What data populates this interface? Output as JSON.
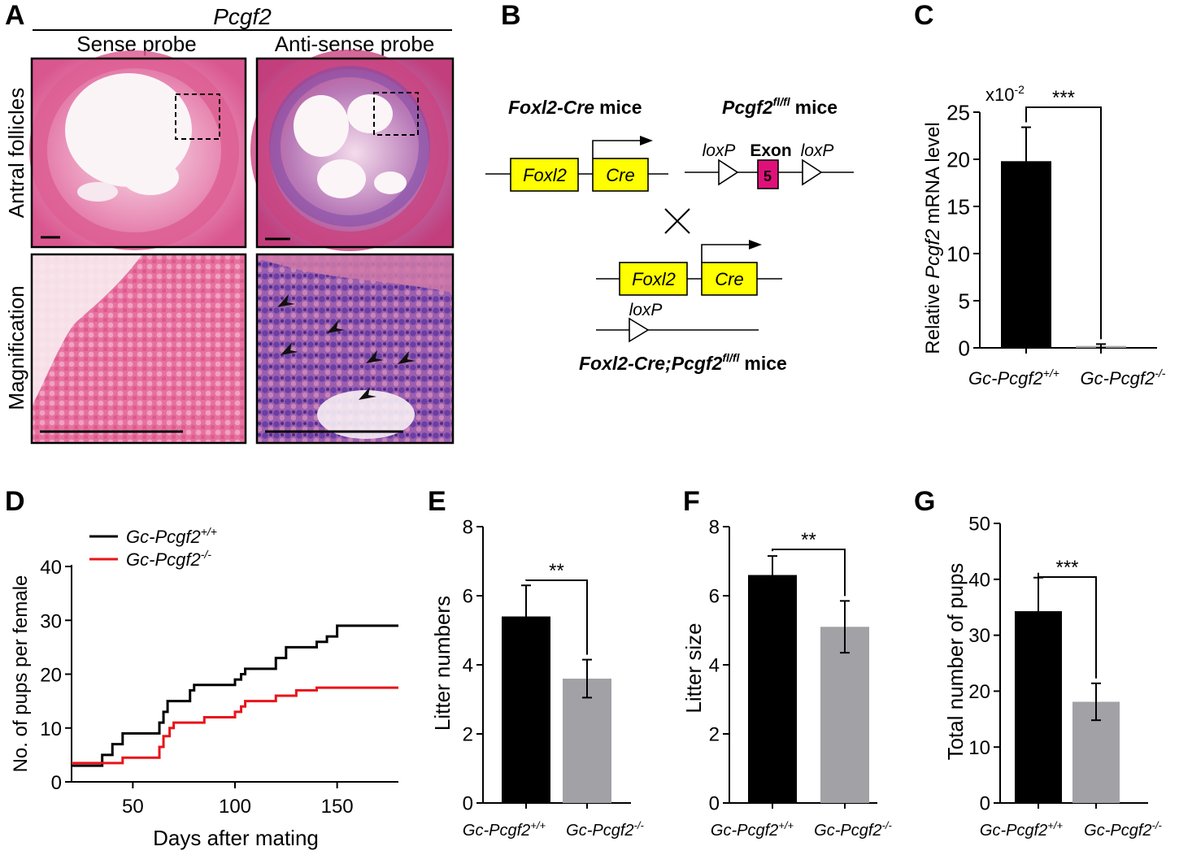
{
  "panel_labels": [
    "A",
    "B",
    "C",
    "D",
    "E",
    "F",
    "G"
  ],
  "colors": {
    "black_bar": "#000000",
    "gray_bar": "#a2a2a6",
    "red_line": "#e8141a",
    "gene_box": "#ffff00",
    "exon_box": "#e0107a",
    "tissue_pink": "#e06a9e",
    "stain_purple": "#6a3fa5"
  },
  "panel_a": {
    "gene": "Pcgf2",
    "col_sense": "Sense probe",
    "col_antisense": "Anti-sense probe",
    "row_antral": "Antral follicles",
    "row_mag": "Magnification"
  },
  "panel_b": {
    "foxl2cre_title_bold": "Foxl2-Cre",
    "mice": "mice",
    "pcgf2_title": "Pcgf2",
    "pcgf2_sup": "fl/fl",
    "foxl2": "Foxl2",
    "cre": "Cre",
    "loxp": "loxP",
    "exon": "Exon",
    "exon_num": "5",
    "cross": "×",
    "result_main": "Foxl2-Cre;Pcgf2",
    "result_sup": "fl/fl",
    "result_tail": "mice"
  },
  "panel_c": {
    "ylabel_pre": "Relative",
    "ylabel_gene": "Pcgf2",
    "ylabel_post": "mRNA level",
    "multiplier": "x10",
    "multiplier_exp": "-2",
    "ticks": [
      "0",
      "5",
      "10",
      "15",
      "20",
      "25"
    ],
    "sig": "***",
    "categories": [
      "Gc-Pcgf2",
      "Gc-Pcgf2"
    ],
    "category_sups": [
      "+/+",
      "-/-"
    ]
  },
  "panel_d": {
    "ylabel": "No. of pups per female",
    "xlabel": "Days after mating",
    "legend": [
      "Gc-Pcgf2",
      "Gc-Pcgf2"
    ],
    "legend_sups": [
      "+/+",
      "-/-"
    ],
    "xticks": [
      "50",
      "100",
      "150"
    ],
    "yticks": [
      "0",
      "10",
      "20",
      "30",
      "40"
    ]
  },
  "panel_e": {
    "ylabel": "Litter numbers",
    "ticks": [
      "0",
      "2",
      "4",
      "6",
      "8"
    ],
    "sig": "**"
  },
  "panel_f": {
    "ylabel": "Litter size",
    "ticks": [
      "0",
      "2",
      "4",
      "6",
      "8"
    ],
    "sig": "**"
  },
  "panel_g": {
    "ylabel": "Total number of pups",
    "ticks": [
      "0",
      "10",
      "20",
      "30",
      "40",
      "50"
    ],
    "sig": "***"
  },
  "chart_data": [
    {
      "panel": "C",
      "type": "bar",
      "title": "",
      "xlabel": "",
      "ylabel": "Relative Pcgf2 mRNA level (x10-2)",
      "categories": [
        "Gc-Pcgf2+/+",
        "Gc-Pcgf2-/-"
      ],
      "values": [
        19.8,
        0.2
      ],
      "errors": [
        3.6,
        0.2
      ],
      "ylim": [
        0,
        25
      ]
    },
    {
      "panel": "D",
      "type": "line",
      "title": "",
      "xlabel": "Days after mating",
      "ylabel": "No. of pups per female",
      "xlim": [
        20,
        180
      ],
      "ylim": [
        0,
        40
      ],
      "series": [
        {
          "name": "Gc-Pcgf2+/+",
          "x": [
            20,
            30,
            35,
            40,
            45,
            60,
            63,
            65,
            67,
            75,
            78,
            80,
            100,
            103,
            105,
            110,
            120,
            125,
            140,
            145,
            150,
            180
          ],
          "y": [
            3,
            3,
            5,
            7,
            9,
            9,
            11,
            13,
            15,
            15,
            17,
            18,
            19,
            20,
            21,
            21,
            23,
            25,
            26,
            27,
            29,
            29
          ]
        },
        {
          "name": "Gc-Pcgf2-/-",
          "x": [
            20,
            30,
            45,
            60,
            63,
            65,
            68,
            70,
            80,
            85,
            100,
            103,
            105,
            110,
            120,
            130,
            140,
            160,
            180
          ],
          "y": [
            3.5,
            3.5,
            4.5,
            4.5,
            6.5,
            8.5,
            10,
            11,
            11,
            12,
            13,
            14,
            15,
            15,
            16,
            17,
            17.5,
            17.5,
            17.5
          ]
        }
      ]
    },
    {
      "panel": "E",
      "type": "bar",
      "title": "",
      "xlabel": "",
      "ylabel": "Litter numbers",
      "categories": [
        "Gc-Pcgf2+/+",
        "Gc-Pcgf2-/-"
      ],
      "values": [
        5.4,
        3.6
      ],
      "errors": [
        0.9,
        0.55
      ],
      "ylim": [
        0,
        8
      ]
    },
    {
      "panel": "F",
      "type": "bar",
      "title": "",
      "xlabel": "",
      "ylabel": "Litter size",
      "categories": [
        "Gc-Pcgf2+/+",
        "Gc-Pcgf2-/-"
      ],
      "values": [
        6.6,
        5.1
      ],
      "errors": [
        0.55,
        0.75
      ],
      "ylim": [
        0,
        8
      ]
    },
    {
      "panel": "G",
      "type": "bar",
      "title": "",
      "xlabel": "",
      "ylabel": "Total number of pups",
      "categories": [
        "Gc-Pcgf2+/+",
        "Gc-Pcgf2-/-"
      ],
      "values": [
        34.3,
        18.1
      ],
      "errors": [
        6.0,
        3.3
      ],
      "ylim": [
        0,
        50
      ]
    }
  ]
}
